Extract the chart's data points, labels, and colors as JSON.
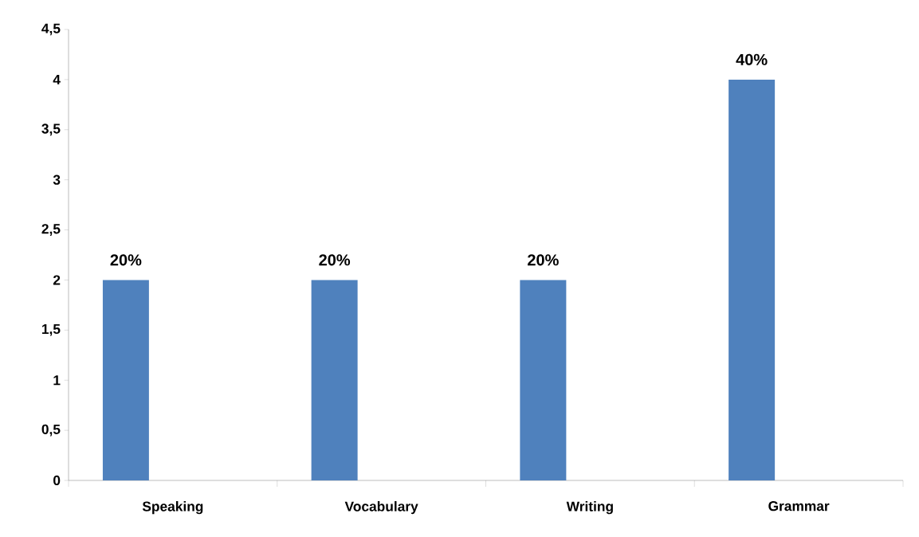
{
  "chart_data": {
    "type": "bar",
    "categories": [
      "Speaking",
      "Vocabulary",
      "Writing",
      "Grammar"
    ],
    "values": [
      2,
      2,
      2,
      4
    ],
    "annotations": [
      "20%",
      "20%",
      "20%",
      "40%"
    ],
    "color": "#4f81bd",
    "ylim": [
      0,
      4.5
    ],
    "yticks": [
      0,
      {
        "value": 0.5,
        "label": "0,5"
      },
      1,
      {
        "value": 1.5,
        "label": "1,5"
      },
      2,
      {
        "value": 2.5,
        "label": "2,5"
      },
      3,
      {
        "value": 3.5,
        "label": "3,5"
      },
      4,
      {
        "value": 4.5,
        "label": "4,5"
      }
    ],
    "grid": false
  }
}
